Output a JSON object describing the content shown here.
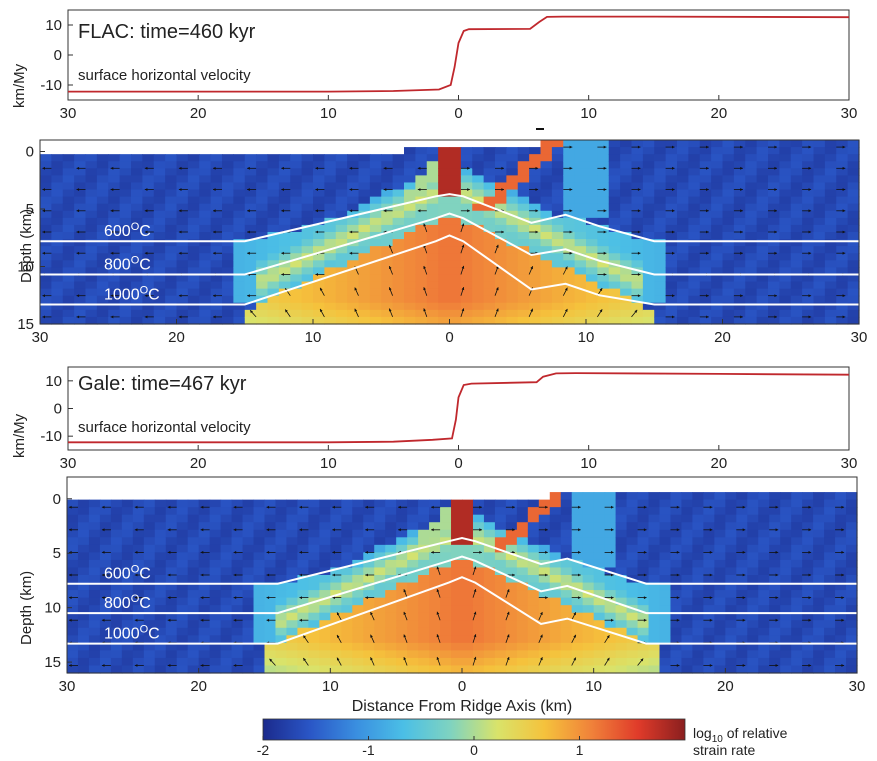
{
  "colors": {
    "velocity_line": "#c0282d",
    "isotherm": "#ffffff",
    "arrow": "#111111",
    "colormap": [
      "#1b2a8c",
      "#2a56c6",
      "#3a8fe0",
      "#4bbfe6",
      "#7fd3c0",
      "#d9e36a",
      "#f5c23c",
      "#f0823a",
      "#e03b2a",
      "#8a1f1f"
    ]
  },
  "chart_data": [
    {
      "type": "line",
      "panel": "flac-velocity",
      "title": "FLAC:  time=460 kyr",
      "annotation": "surface horizontal velocity",
      "ylabel": "km/My",
      "xlim": [
        -30,
        30
      ],
      "ylim": [
        -15,
        15
      ],
      "x_ticks": [
        -30,
        -20,
        -10,
        0,
        10,
        20,
        30
      ],
      "x_tick_labels": [
        "30",
        "20",
        "10",
        "0",
        "10",
        "20",
        "30"
      ],
      "y_ticks": [
        10,
        0,
        -10
      ],
      "y_tick_labels": [
        "10",
        "0",
        "-10"
      ],
      "x": [
        -30,
        -10,
        -5,
        -1.5,
        -0.6,
        -0.3,
        0,
        0.4,
        0.8,
        5.5,
        6.2,
        6.8,
        8,
        15,
        30
      ],
      "y": [
        -12.2,
        -12.2,
        -12.0,
        -11.5,
        -10,
        -4,
        4,
        8,
        8.6,
        8.7,
        11,
        12.7,
        12.8,
        12.8,
        12.6
      ]
    },
    {
      "type": "heatmap",
      "panel": "flac-strain",
      "ylabel": "Depth (km)",
      "xlim": [
        -30,
        30
      ],
      "ylim": [
        15,
        -1
      ],
      "x_ticks": [
        -30,
        -20,
        -10,
        0,
        10,
        20,
        30
      ],
      "x_tick_labels": [
        "30",
        "20",
        "10",
        "0",
        "10",
        "20",
        "30"
      ],
      "y_ticks": [
        0,
        5,
        10,
        15
      ],
      "y_tick_labels": [
        "0",
        "5",
        "10",
        "15"
      ],
      "isotherms": [
        {
          "label": "600",
          "unit": "C",
          "x": [
            -30,
            -15,
            -1,
            0,
            1,
            6,
            8.5,
            11,
            15,
            30
          ],
          "depth": [
            7.8,
            7.8,
            3.9,
            3.7,
            3.9,
            6.2,
            5.5,
            6.5,
            7.8,
            7.8
          ]
        },
        {
          "label": "800",
          "unit": "C",
          "x": [
            -30,
            -15,
            -1,
            0,
            1,
            6,
            8.5,
            11,
            15,
            30
          ],
          "depth": [
            10.7,
            10.7,
            5.8,
            5.4,
            5.8,
            9.0,
            8.5,
            9.5,
            10.7,
            10.7
          ]
        },
        {
          "label": "1000",
          "unit": "C",
          "x": [
            -30,
            -15,
            -1,
            0,
            1,
            6,
            8.5,
            11,
            15,
            30
          ],
          "depth": [
            13.3,
            13.3,
            7.8,
            7.3,
            7.8,
            12.0,
            11.5,
            12.5,
            13.3,
            13.3
          ]
        }
      ]
    },
    {
      "type": "line",
      "panel": "gale-velocity",
      "title": "Gale:  time=467 kyr",
      "annotation": "surface horizontal velocity",
      "ylabel": "km/My",
      "xlim": [
        -30,
        30
      ],
      "ylim": [
        -15,
        15
      ],
      "x_ticks": [
        -30,
        -20,
        -10,
        0,
        10,
        20,
        30
      ],
      "x_tick_labels": [
        "30",
        "20",
        "10",
        "0",
        "10",
        "20",
        "30"
      ],
      "y_ticks": [
        10,
        0,
        -10
      ],
      "y_tick_labels": [
        "10",
        "0",
        "-10"
      ],
      "x": [
        -30,
        -10,
        -5,
        -2,
        -0.5,
        -0.2,
        0,
        0.4,
        1,
        6,
        6.5,
        7.5,
        9,
        20,
        30
      ],
      "y": [
        -12.2,
        -12.2,
        -12.0,
        -11.3,
        -10.8,
        -4,
        4,
        8.5,
        9,
        9.5,
        11.5,
        12.7,
        12.8,
        12.5,
        12.2
      ]
    },
    {
      "type": "heatmap",
      "panel": "gale-strain",
      "ylabel": "Depth (km)",
      "xlabel": "Distance From Ridge Axis (km)",
      "xlim": [
        -30,
        30
      ],
      "ylim": [
        16,
        -2
      ],
      "x_ticks": [
        -30,
        -20,
        -10,
        0,
        10,
        20,
        30
      ],
      "x_tick_labels": [
        "30",
        "20",
        "10",
        "0",
        "10",
        "20",
        "30"
      ],
      "y_ticks": [
        0,
        5,
        10,
        15
      ],
      "y_tick_labels": [
        "0",
        "5",
        "10",
        "15"
      ],
      "isotherms": [
        {
          "label": "600",
          "unit": "C",
          "x": [
            -30,
            -14,
            -1,
            0,
            1,
            6,
            8,
            14,
            30
          ],
          "depth": [
            7.8,
            7.8,
            3.9,
            3.6,
            3.9,
            6.0,
            5.5,
            7.8,
            7.8
          ]
        },
        {
          "label": "800",
          "unit": "C",
          "x": [
            -30,
            -14,
            -1,
            0,
            1,
            6,
            8,
            14,
            30
          ],
          "depth": [
            10.5,
            10.5,
            5.7,
            5.3,
            5.7,
            8.5,
            8.0,
            10.5,
            10.5
          ]
        },
        {
          "label": "1000",
          "unit": "C",
          "x": [
            -30,
            -14,
            -1,
            0,
            1,
            6,
            8,
            14,
            30
          ],
          "depth": [
            13.3,
            13.3,
            7.7,
            7.2,
            7.7,
            11.5,
            11.0,
            13.3,
            13.3
          ]
        }
      ]
    },
    {
      "type": "colorbar",
      "panel": "colorbar",
      "ticks": [
        -2,
        -1,
        0,
        1
      ],
      "tick_labels": [
        "-2",
        "-1",
        "0",
        "1"
      ],
      "range": [
        -2,
        2
      ],
      "label_line1": "log",
      "label_sub": "10",
      "label_line1_rest": " of relative",
      "label_line2": "strain rate"
    }
  ]
}
